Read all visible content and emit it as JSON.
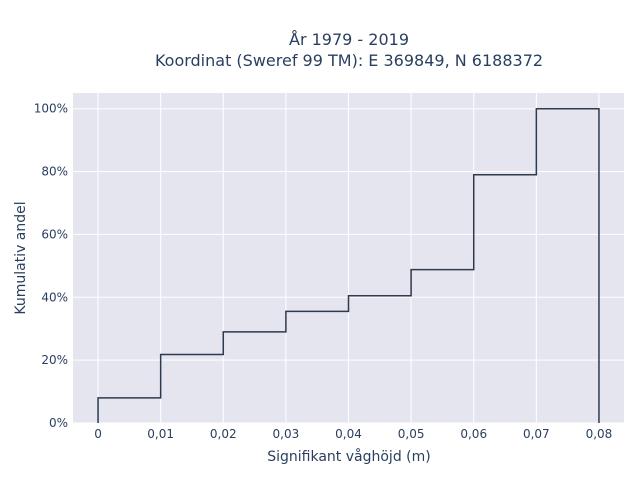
{
  "chart_data": {
    "type": "line",
    "line_shape": "step",
    "title": "År 1979 - 2019",
    "subtitle": "Koordinat (Sweref 99 TM): E 369849, N 6188372",
    "xlabel": "Signifikant våghöjd (m)",
    "ylabel": "Kumulativ andel",
    "x_ticks": [
      "0",
      "0,01",
      "0,02",
      "0,03",
      "0,04",
      "0,05",
      "0,06",
      "0,07",
      "0,08"
    ],
    "y_ticks": [
      "0%",
      "20%",
      "40%",
      "60%",
      "80%",
      "100%"
    ],
    "xlim": [
      -0.004,
      0.084
    ],
    "ylim": [
      0,
      1.05
    ],
    "grid": true,
    "series": [
      {
        "x": [
          0,
          0,
          0.01,
          0.01,
          0.02,
          0.02,
          0.03,
          0.03,
          0.04,
          0.04,
          0.05,
          0.05,
          0.06,
          0.06,
          0.07,
          0.07,
          0.08,
          0.08
        ],
        "y": [
          0,
          0.08,
          0.08,
          0.218,
          0.218,
          0.29,
          0.29,
          0.355,
          0.355,
          0.405,
          0.405,
          0.488,
          0.488,
          0.79,
          0.79,
          1.0,
          1.0,
          0
        ],
        "color": "#2e3b4e"
      }
    ],
    "plot_bg": "#e5e5ef",
    "grid_color": "#ffffff",
    "text_color": "#2a3f5f"
  }
}
